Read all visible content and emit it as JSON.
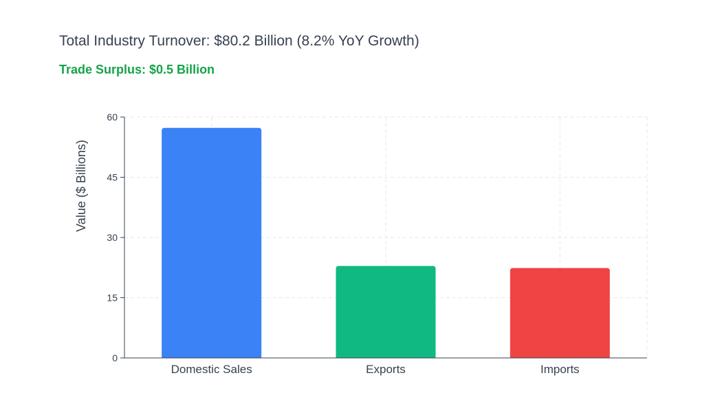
{
  "header": {
    "title": "Total Industry Turnover: $80.2 Billion (8.2% YoY Growth)",
    "subtitle": "Trade Surplus: $0.5 Billion"
  },
  "colors": {
    "subtitle": "#16a34a",
    "domestic": "#3b82f6",
    "exports": "#10b981",
    "imports": "#ef4444",
    "grid": "#e5e7eb",
    "axis": "#374151",
    "text": "#374151"
  },
  "chart_data": {
    "type": "bar",
    "categories": [
      "Domestic Sales",
      "Exports",
      "Imports"
    ],
    "values": [
      57.3,
      22.9,
      22.4
    ],
    "bar_colors": [
      "#3b82f6",
      "#10b981",
      "#ef4444"
    ],
    "title": "Total Industry Turnover: $80.2 Billion (8.2% YoY Growth)",
    "subtitle": "Trade Surplus: $0.5 Billion",
    "xlabel": "",
    "ylabel": "Value ($ Billions)",
    "ylim": [
      0,
      60
    ],
    "yticks": [
      0,
      15,
      30,
      45,
      60
    ],
    "ytick_labels": [
      "0",
      "15",
      "30",
      "45",
      "60"
    ],
    "grid": true,
    "legend": "none"
  }
}
